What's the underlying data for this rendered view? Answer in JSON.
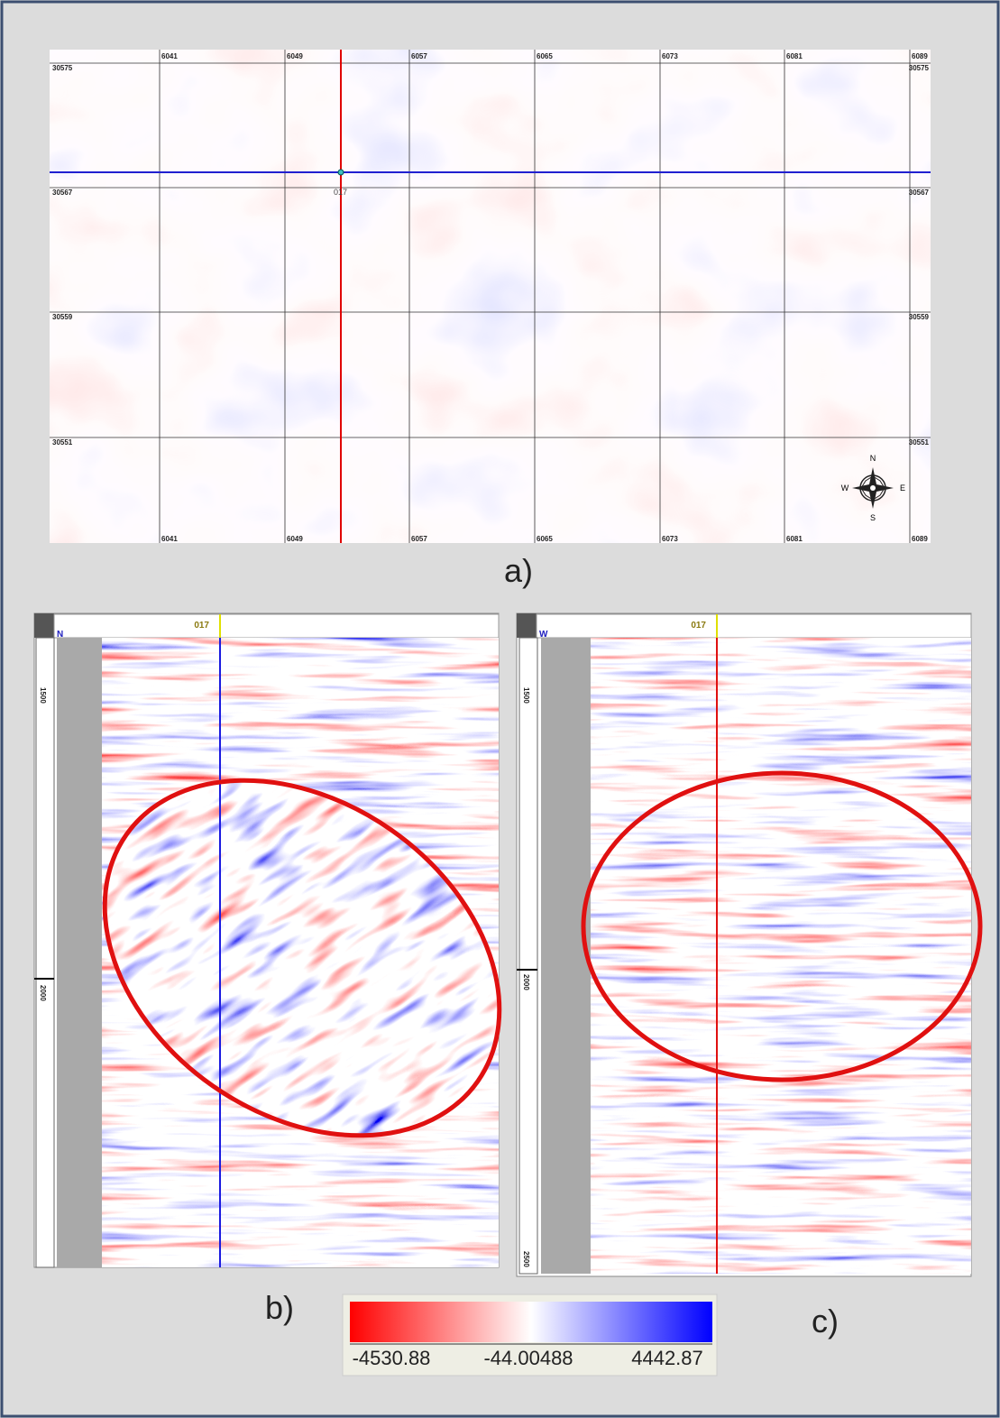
{
  "panel_a": {
    "label": "a)",
    "x_labels": [
      "6041",
      "6049",
      "6057",
      "6065",
      "6073",
      "6081",
      "6089"
    ],
    "y_labels": [
      "30575",
      "30567",
      "30559",
      "30551"
    ],
    "cursor_label": "017",
    "compass": {
      "n": "N",
      "e": "E",
      "s": "S",
      "w": "W"
    }
  },
  "panel_b": {
    "label": "b)",
    "direction": "N",
    "trace_label": "017",
    "depth_labels": [
      "1500",
      "2000"
    ]
  },
  "panel_c": {
    "label": "c)",
    "direction": "W",
    "trace_label": "017",
    "depth_labels": [
      "1500",
      "2000",
      "2500"
    ]
  },
  "colorbar": {
    "labels": [
      "-4530.88",
      "-44.00488",
      "4442.87"
    ]
  }
}
